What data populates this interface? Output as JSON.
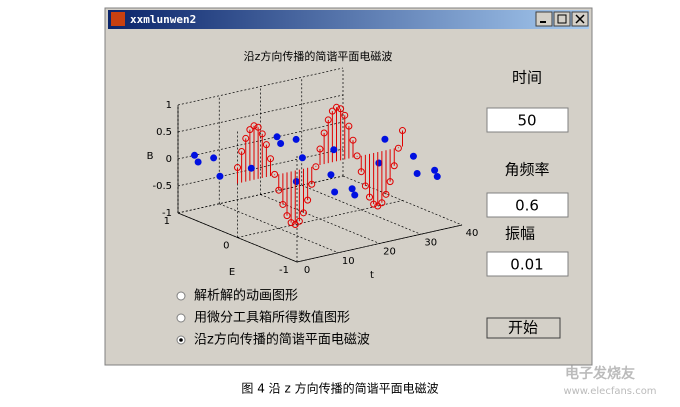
{
  "window": {
    "title": "xxmlunwen2"
  },
  "plot": {
    "title": "沿z方向传播的简谐平面电磁波",
    "z_label": "B",
    "e_label": "E",
    "t_label": "t",
    "z_ticks": [
      "1",
      "0.5",
      "0",
      "-0.5",
      "-1"
    ],
    "e_ticks": [
      "1",
      "0",
      "-1"
    ],
    "t_ticks": [
      "0",
      "10",
      "20",
      "30",
      "40"
    ]
  },
  "controls": {
    "time_label": "时间",
    "time_value": "50",
    "freq_label": "角频率",
    "freq_value": "0.6",
    "amp_label": "振幅",
    "amp_value": "0.01",
    "start_button": "开始"
  },
  "options": [
    "解析解的动画图形",
    "用微分工具箱所得数值图形",
    "沿z方向传播的简谐平面电磁波"
  ],
  "caption": "图 4 沿 z 方向传播的简谐平面电磁波",
  "watermark": {
    "name": "电子发烧友",
    "url": "www.elecfans.com"
  }
}
